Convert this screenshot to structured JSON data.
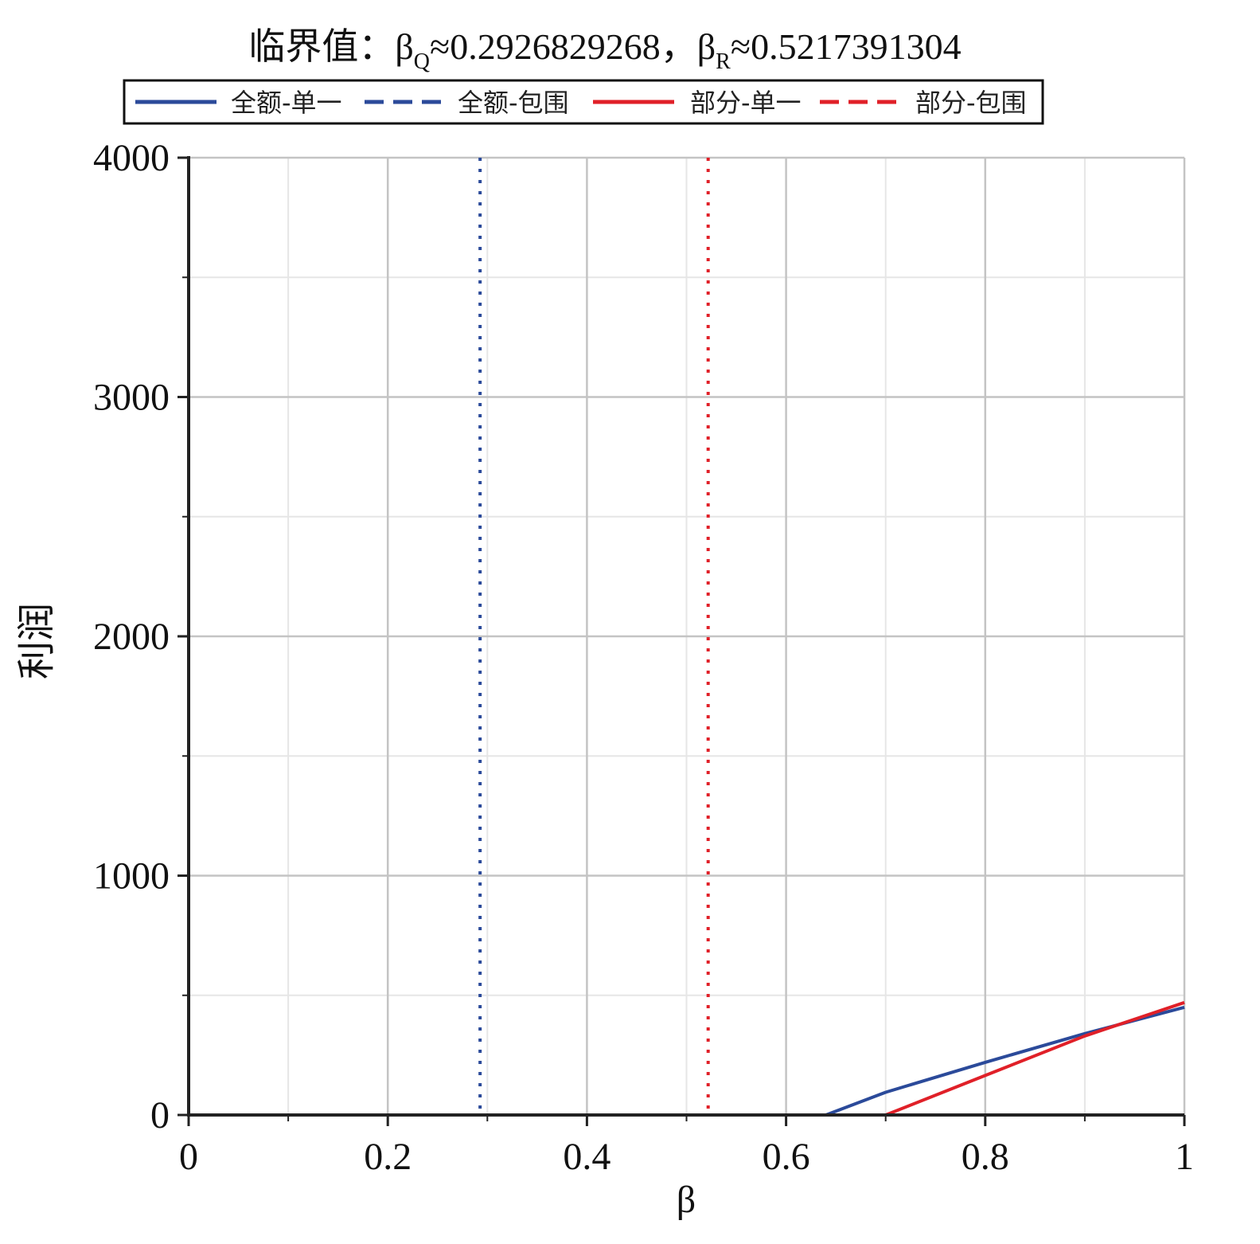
{
  "chart_data": {
    "type": "line",
    "title": {
      "prefix": "临界值：",
      "beta": "β",
      "sub_q": "Q",
      "value_q": "≈0.2926829268，",
      "sub_r": "R",
      "value_r": "≈0.5217391304"
    },
    "xlabel": "β",
    "ylabel": "利润",
    "xlim": [
      0,
      1
    ],
    "ylim": [
      0,
      4000
    ],
    "x_ticks": [
      0,
      0.2,
      0.4,
      0.6,
      0.8,
      1
    ],
    "x_tick_labels": [
      "0",
      "0.2",
      "0.4",
      "0.6",
      "0.8",
      "1"
    ],
    "y_ticks": [
      0,
      1000,
      2000,
      3000,
      4000
    ],
    "y_tick_labels": [
      "0",
      "1000",
      "2000",
      "3000",
      "4000"
    ],
    "grid": true,
    "legend": {
      "placement": "top",
      "entries": [
        "全额-单一",
        "全额-包围",
        "部分-单一",
        "部分-包围"
      ]
    },
    "series": [
      {
        "name": "全额-单一",
        "color": "#2b4a9a",
        "style": "solid",
        "x": [
          0,
          0.64,
          0.7,
          0.8,
          0.9,
          1.0
        ],
        "y": [
          0,
          0,
          95,
          220,
          340,
          450
        ]
      },
      {
        "name": "全额-包围",
        "color": "#2b4a9a",
        "style": "dashed",
        "x": [
          0,
          1.0
        ],
        "y": [
          0,
          0
        ]
      },
      {
        "name": "部分-单一",
        "color": "#e02028",
        "style": "solid",
        "x": [
          0,
          0.7,
          0.8,
          0.9,
          1.0
        ],
        "y": [
          0,
          0,
          165,
          330,
          470
        ]
      },
      {
        "name": "部分-包围",
        "color": "#e02028",
        "style": "dashed",
        "x": [
          0,
          1.0
        ],
        "y": [
          0,
          0
        ]
      }
    ],
    "reference_lines": [
      {
        "x": 0.2926829268,
        "color": "#2b4a9a",
        "style": "dotted"
      },
      {
        "x": 0.5217391304,
        "color": "#e02028",
        "style": "dotted"
      }
    ]
  }
}
